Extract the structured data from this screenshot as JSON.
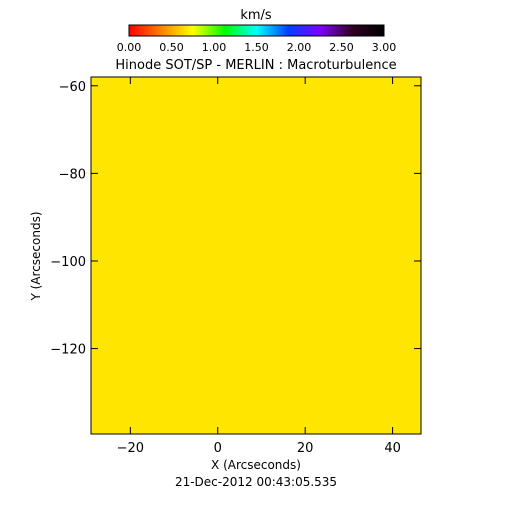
{
  "chart_data": {
    "type": "heatmap",
    "title": "Hinode SOT/SP - MERLIN : Macroturbulence",
    "xlabel": "X (Arcseconds)",
    "ylabel": "Y (Arcseconds)",
    "xlim": [
      -29,
      46.5
    ],
    "ylim": [
      -139.5,
      -58
    ],
    "xticks": [
      -20,
      0,
      20,
      40
    ],
    "xtick_labels": [
      "−20",
      "0",
      "20",
      "40"
    ],
    "yticks": [
      -60,
      -80,
      -100,
      -120
    ],
    "ytick_labels": [
      "−60",
      "−80",
      "−100",
      "−120"
    ],
    "field_value": 1.2,
    "field_color": "#ffe600",
    "colorbar": {
      "label": "km/s",
      "range": [
        0,
        3
      ],
      "ticks": [
        0,
        0.5,
        1,
        1.5,
        2,
        2.5,
        3
      ],
      "tick_labels": [
        "0.00",
        "0.50",
        "1.00",
        "1.50",
        "2.00",
        "2.50",
        "3.00"
      ],
      "colors": [
        "#ff0000",
        "#ff8000",
        "#ffff00",
        "#00ff00",
        "#00ffff",
        "#0040ff",
        "#8000ff",
        "#300020",
        "#000000"
      ]
    },
    "timestamp": "21-Dec-2012 00:43:05.535",
    "grid": false
  }
}
